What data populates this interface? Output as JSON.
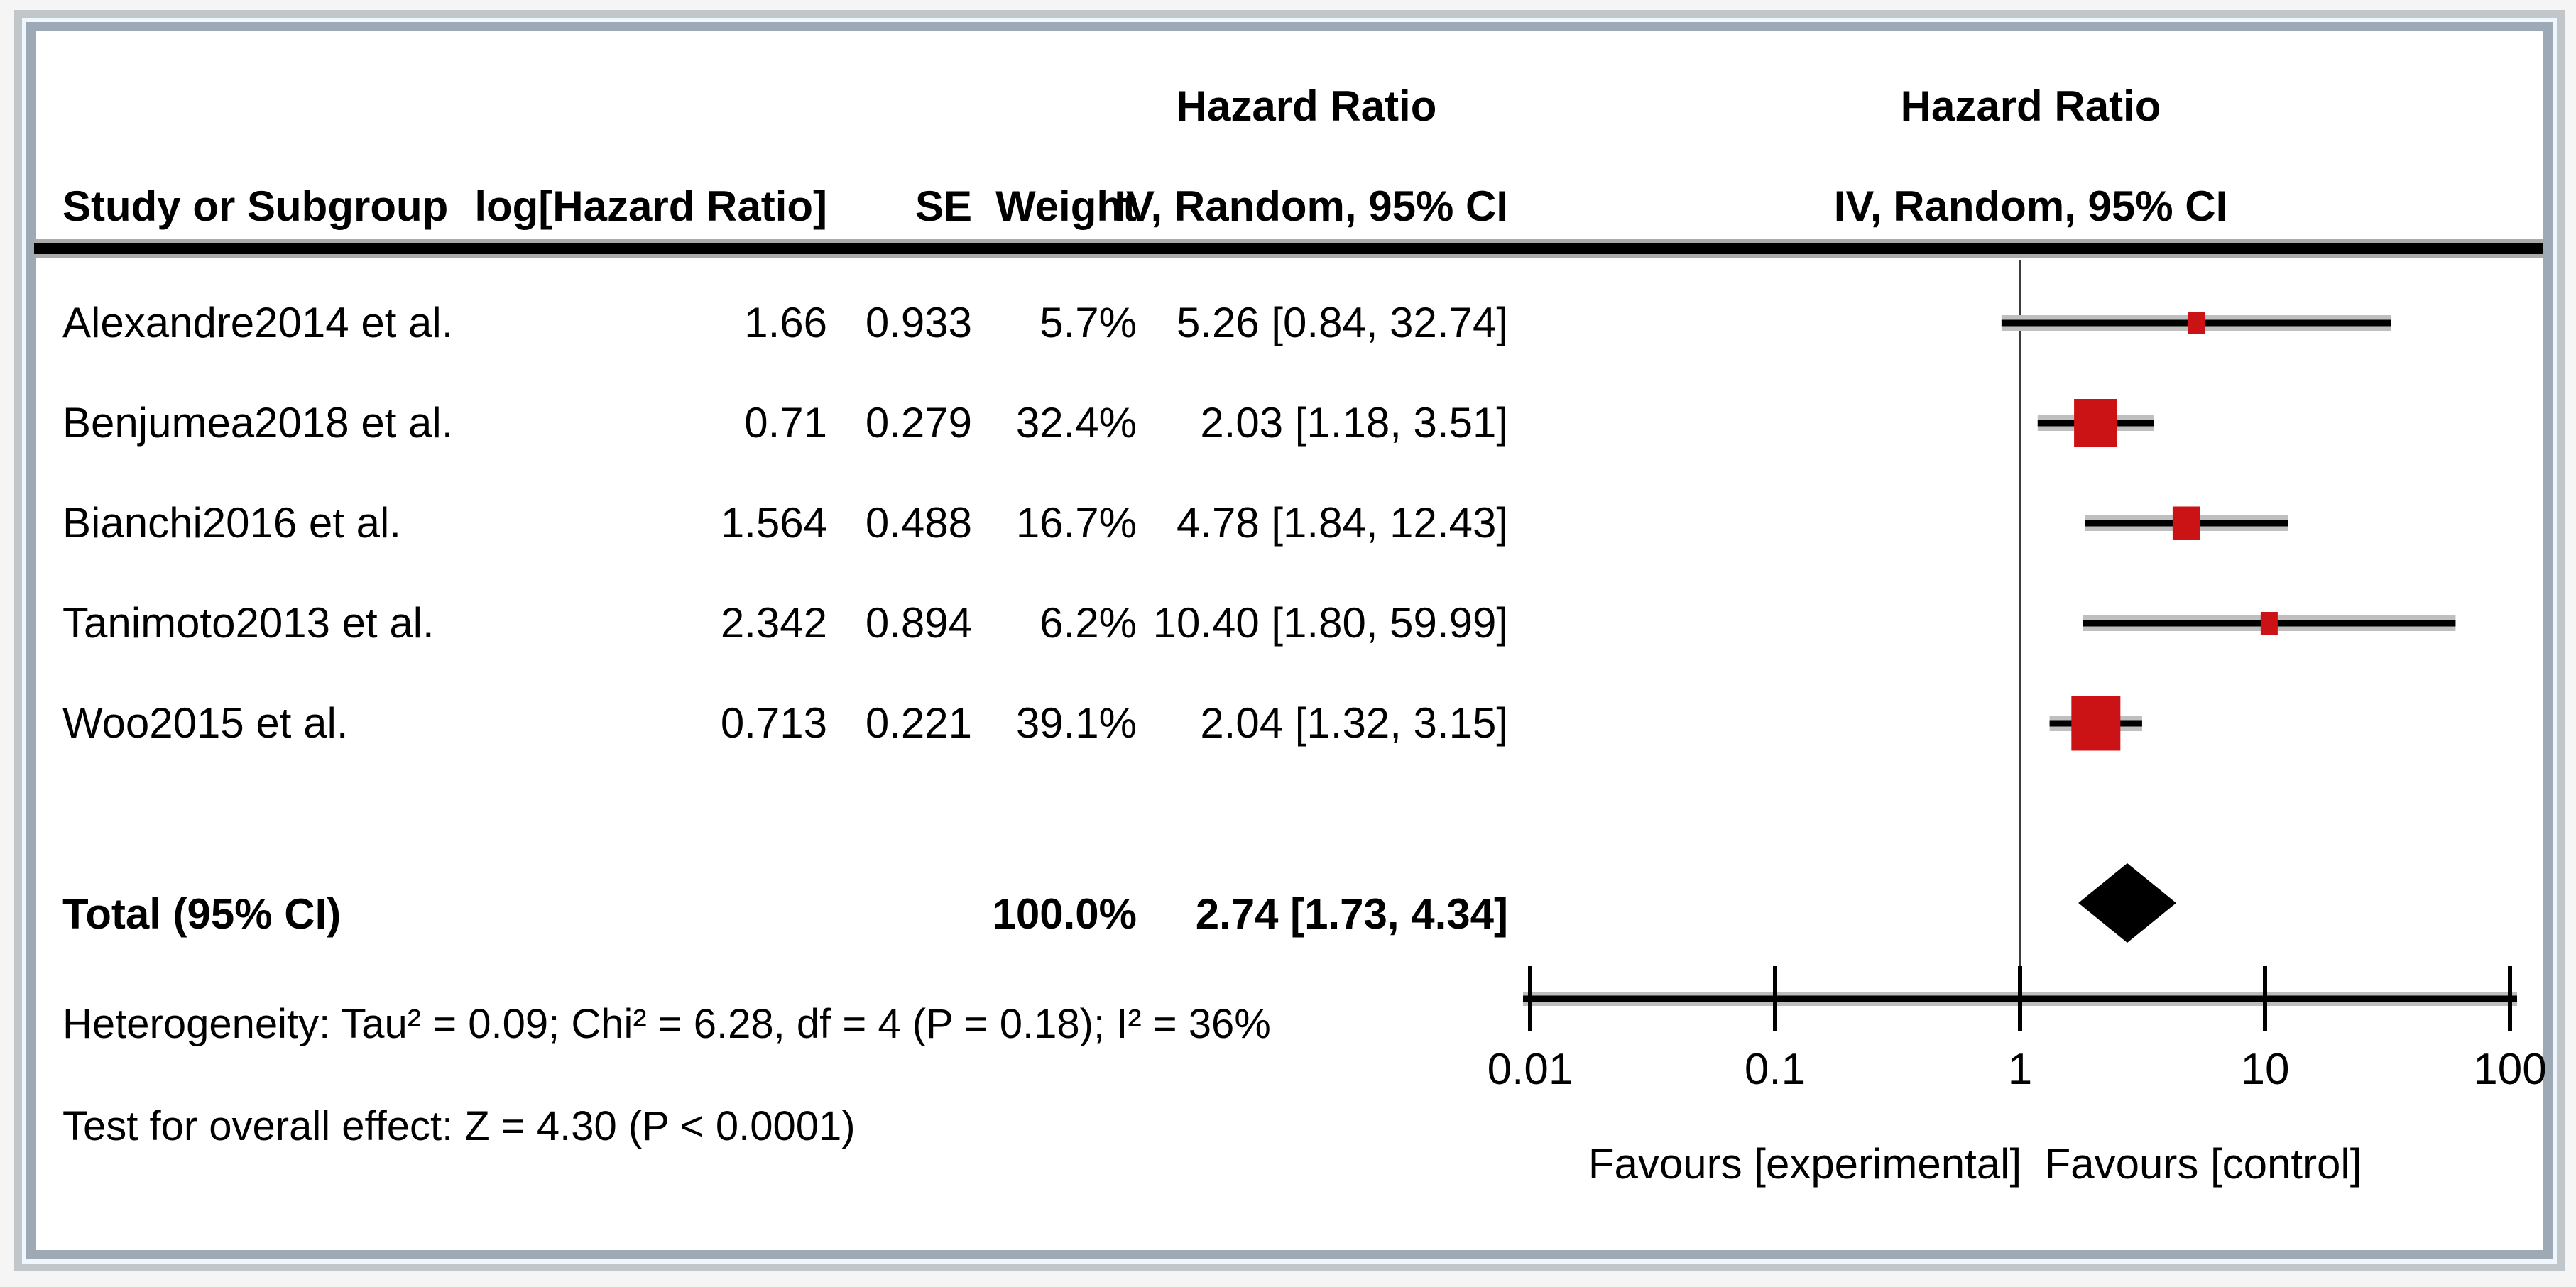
{
  "chart_data": {
    "type": "scatter",
    "subtype": "forest_plot_meta_analysis",
    "effect_measure": "Hazard Ratio",
    "model": "IV, Random, 95% CI",
    "columns": {
      "study": "Study or Subgroup",
      "log_hr": "log[Hazard Ratio]",
      "se": "SE",
      "weight": "Weight",
      "ci_header_line1": "Hazard Ratio",
      "ci_header_line2": "IV, Random, 95% CI",
      "plot_header_line1": "Hazard Ratio",
      "plot_header_line2": "IV, Random, 95% CI"
    },
    "studies": [
      {
        "name": "Alexandre2014 et al.",
        "log_hr": "1.66",
        "se": "0.933",
        "weight": "5.7%",
        "weight_pct": 5.7,
        "hr": 5.26,
        "ci_low": 0.84,
        "ci_high": 32.74,
        "ci_text": "5.26 [0.84, 32.74]"
      },
      {
        "name": "Benjumea2018 et al.",
        "log_hr": "0.71",
        "se": "0.279",
        "weight": "32.4%",
        "weight_pct": 32.4,
        "hr": 2.03,
        "ci_low": 1.18,
        "ci_high": 3.51,
        "ci_text": "2.03 [1.18, 3.51]"
      },
      {
        "name": "Bianchi2016 et al.",
        "log_hr": "1.564",
        "se": "0.488",
        "weight": "16.7%",
        "weight_pct": 16.7,
        "hr": 4.78,
        "ci_low": 1.84,
        "ci_high": 12.43,
        "ci_text": "4.78 [1.84, 12.43]"
      },
      {
        "name": "Tanimoto2013 et al.",
        "log_hr": "2.342",
        "se": "0.894",
        "weight": "6.2%",
        "weight_pct": 6.2,
        "hr": 10.4,
        "ci_low": 1.8,
        "ci_high": 59.99,
        "ci_text": "10.40 [1.80, 59.99]"
      },
      {
        "name": "Woo2015 et al.",
        "log_hr": "0.713",
        "se": "0.221",
        "weight": "39.1%",
        "weight_pct": 39.1,
        "hr": 2.04,
        "ci_low": 1.32,
        "ci_high": 3.15,
        "ci_text": "2.04 [1.32, 3.15]"
      }
    ],
    "total": {
      "label": "Total (95% CI)",
      "weight": "100.0%",
      "weight_pct": 100.0,
      "hr": 2.74,
      "ci_low": 1.73,
      "ci_high": 4.34,
      "ci_text": "2.74 [1.73, 4.34]"
    },
    "heterogeneity": "Heterogeneity: Tau² = 0.09; Chi² = 6.28, df = 4 (P = 0.18); I² = 36%",
    "overall_effect": "Test for overall effect: Z = 4.30 (P < 0.0001)",
    "x_axis": {
      "scale": "log10",
      "min": 0.01,
      "max": 100,
      "ticks": [
        0.01,
        0.1,
        1,
        10,
        100
      ],
      "tick_labels": [
        "0.01",
        "0.1",
        "1",
        "10",
        "100"
      ],
      "null_line": 1,
      "label_left": "Favours [experimental]",
      "label_right": "Favours [control]"
    },
    "colors": {
      "marker": "#cb1316",
      "ci_line": "#000000",
      "ci_halo": "#bfbfbf",
      "diamond": "#000000",
      "null_line": "#3c3c3c",
      "axis": "#000000",
      "frame_border": "#9daab6",
      "frame_outer": "#c1c6ca"
    }
  }
}
